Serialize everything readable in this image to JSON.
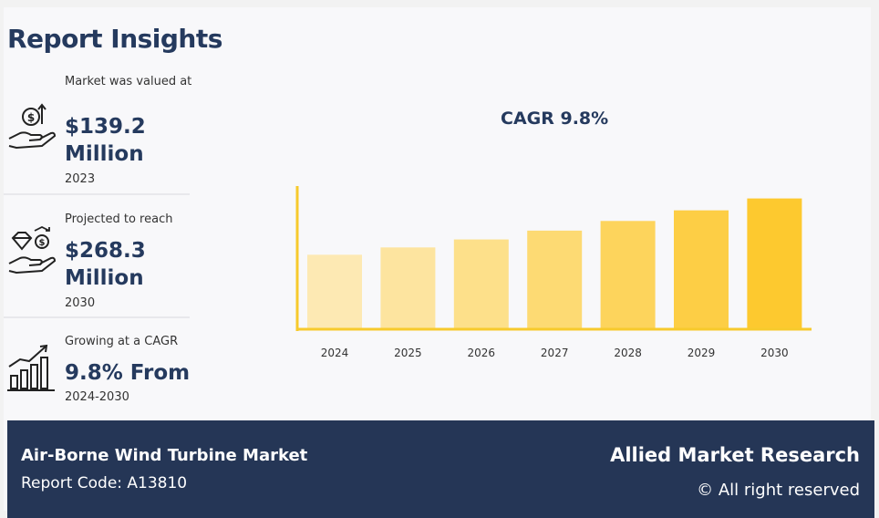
{
  "header": {
    "title": "Report Insights"
  },
  "stats": [
    {
      "label": "Market was valued at",
      "value": "$139.2 Million",
      "sub": "2023",
      "icon": "money-hand-icon"
    },
    {
      "label": "Projected to reach",
      "value": "$268.3 Million",
      "sub": "2030",
      "icon": "diamond-dollar-hand-icon"
    },
    {
      "label": "Growing at a CAGR",
      "value": "9.8% From",
      "sub": "2024-2030",
      "icon": "growth-bars-icon"
    }
  ],
  "chart_data": {
    "type": "bar",
    "title": "CAGR 9.8%",
    "categories": [
      "2024",
      "2025",
      "2026",
      "2027",
      "2028",
      "2029",
      "2030"
    ],
    "values": [
      152.8,
      167.8,
      184.2,
      202.3,
      222.1,
      243.9,
      268.3
    ],
    "ylim": [
      0,
      290
    ],
    "grid": false,
    "colors": [
      "#fde9b3",
      "#fde49f",
      "#fde08a",
      "#fdda73",
      "#fdd45c",
      "#fdce45",
      "#fdc92f"
    ],
    "axis_color": "#f7ca2c"
  },
  "footer": {
    "market_title": "Air-Borne Wind Turbine Market",
    "report_code": "Report Code: A13810",
    "brand": "Allied Market Research",
    "rights": "© All right reserved"
  }
}
